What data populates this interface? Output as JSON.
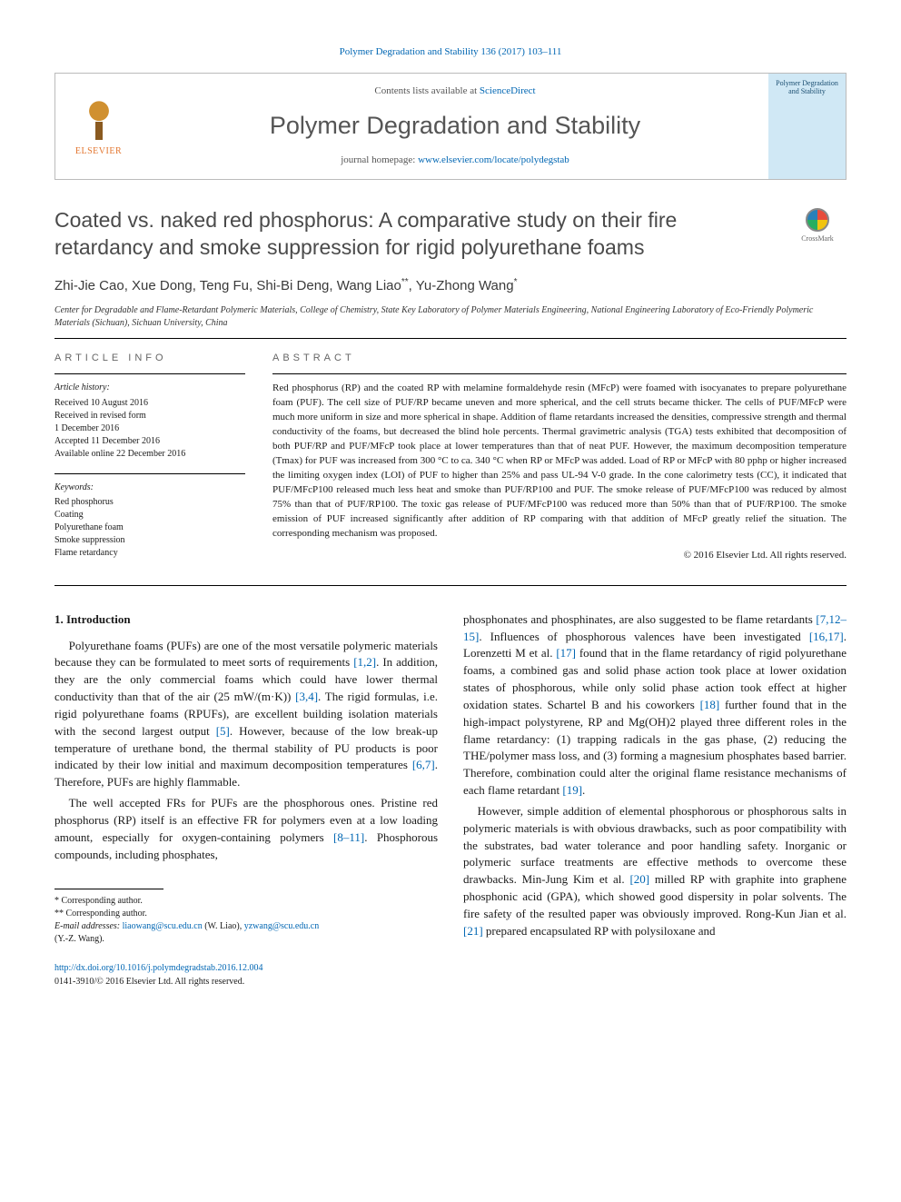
{
  "top_citation": "Polymer Degradation and Stability 136 (2017) 103–111",
  "header": {
    "publisher": "ELSEVIER",
    "contents_prefix": "Contents lists available at ",
    "contents_link": "ScienceDirect",
    "journal_name": "Polymer Degradation and Stability",
    "homepage_prefix": "journal homepage: ",
    "homepage_link": "www.elsevier.com/locate/polydegstab",
    "cover_title": "Polymer Degradation and Stability"
  },
  "crossmark_label": "CrossMark",
  "article": {
    "title": "Coated vs. naked red phosphorus: A comparative study on their fire retardancy and smoke suppression for rigid polyurethane foams",
    "authors": "Zhi-Jie Cao, Xue Dong, Teng Fu, Shi-Bi Deng, Wang Liao",
    "author_marks_1": "**",
    "author_last": ", Yu-Zhong Wang",
    "author_marks_2": "*",
    "affiliation": "Center for Degradable and Flame-Retardant Polymeric Materials, College of Chemistry, State Key Laboratory of Polymer Materials Engineering, National Engineering Laboratory of Eco-Friendly Polymeric Materials (Sichuan), Sichuan University, China"
  },
  "info_heading": "ARTICLE INFO",
  "abs_heading": "ABSTRACT",
  "history": {
    "label": "Article history:",
    "received": "Received 10 August 2016",
    "revised": "Received in revised form",
    "revised_date": "1 December 2016",
    "accepted": "Accepted 11 December 2016",
    "online": "Available online 22 December 2016"
  },
  "keywords": {
    "label": "Keywords:",
    "items": [
      "Red phosphorus",
      "Coating",
      "Polyurethane foam",
      "Smoke suppression",
      "Flame retardancy"
    ]
  },
  "abstract": "Red phosphorus (RP) and the coated RP with melamine formaldehyde resin (MFcP) were foamed with isocyanates to prepare polyurethane foam (PUF). The cell size of PUF/RP became uneven and more spherical, and the cell struts became thicker. The cells of PUF/MFcP were much more uniform in size and more spherical in shape. Addition of flame retardants increased the densities, compressive strength and thermal conductivity of the foams, but decreased the blind hole percents. Thermal gravimetric analysis (TGA) tests exhibited that decomposition of both PUF/RP and PUF/MFcP took place at lower temperatures than that of neat PUF. However, the maximum decomposition temperature (Tmax) for PUF was increased from 300 °C to ca. 340 °C when RP or MFcP was added. Load of RP or MFcP with 80 pphp or higher increased the limiting oxygen index (LOI) of PUF to higher than 25% and pass UL-94 V-0 grade. In the cone calorimetry tests (CC), it indicated that PUF/MFcP100 released much less heat and smoke than PUF/RP100 and PUF. The smoke release of PUF/MFcP100 was reduced by almost 75% than that of PUF/RP100. The toxic gas release of PUF/MFcP100 was reduced more than 50% than that of PUF/RP100. The smoke emission of PUF increased significantly after addition of RP comparing with that addition of MFcP greatly relief the situation. The corresponding mechanism was proposed.",
  "copyright": "© 2016 Elsevier Ltd. All rights reserved.",
  "section_1": "1. Introduction",
  "col_left": {
    "p1a": "Polyurethane foams (PUFs) are one of the most versatile polymeric materials because they can be formulated to meet sorts of requirements ",
    "r1": "[1,2]",
    "p1b": ". In addition, they are the only commercial foams which could have lower thermal conductivity than that of the air (25 mW/(m·K)) ",
    "r2": "[3,4]",
    "p1c": ". The rigid formulas, i.e. rigid polyurethane foams (RPUFs), are excellent building isolation materials with the second largest output ",
    "r3": "[5]",
    "p1d": ". However, because of the low break-up temperature of urethane bond, the thermal stability of PU products is poor indicated by their low initial and maximum decomposition temperatures ",
    "r4": "[6,7]",
    "p1e": ". Therefore, PUFs are highly flammable.",
    "p2a": "The well accepted FRs for PUFs are the phosphorous ones. Pristine red phosphorus (RP) itself is an effective FR for polymers even at a low loading amount, especially for oxygen-containing polymers ",
    "r5": "[8–11]",
    "p2b": ". Phosphorous compounds, including phosphates,"
  },
  "col_right": {
    "p1a": "phosphonates and phosphinates, are also suggested to be flame retardants ",
    "r1": "[7,12–15]",
    "p1b": ". Influences of phosphorous valences have been investigated ",
    "r2": "[16,17]",
    "p1c": ". Lorenzetti M et al. ",
    "r3": "[17]",
    "p1d": " found that in the flame retardancy of rigid polyurethane foams, a combined gas and solid phase action took place at lower oxidation states of phosphorous, while only solid phase action took effect at higher oxidation states. Schartel B and his coworkers ",
    "r4": "[18]",
    "p1e": " further found that in the high-impact polystyrene, RP and Mg(OH)2 played three different roles in the flame retardancy: (1) trapping radicals in the gas phase, (2) reducing the THE/polymer mass loss, and (3) forming a magnesium phosphates based barrier. Therefore, combination could alter the original flame resistance mechanisms of each flame retardant ",
    "r5": "[19]",
    "p1f": ".",
    "p2a": "However, simple addition of elemental phosphorous or phosphorous salts in polymeric materials is with obvious drawbacks, such as poor compatibility with the substrates, bad water tolerance and poor handling safety. Inorganic or polymeric surface treatments are effective methods to overcome these drawbacks. Min-Jung Kim et al. ",
    "r6": "[20]",
    "p2b": " milled RP with graphite into graphene phosphonic acid (GPA), which showed good dispersity in polar solvents. The fire safety of the resulted paper was obviously improved. Rong-Kun Jian et al. ",
    "r7": "[21]",
    "p2c": " prepared encapsulated RP with polysiloxane and"
  },
  "footnotes": {
    "f1": "* Corresponding author.",
    "f2": "** Corresponding author.",
    "email_label": "E-mail addresses:",
    "email1": "liaowang@scu.edu.cn",
    "email1_name": " (W. Liao), ",
    "email2": "yzwang@scu.edu.cn",
    "email2_name": "(Y.-Z. Wang)."
  },
  "bottom": {
    "doi": "http://dx.doi.org/10.1016/j.polymdegradstab.2016.12.004",
    "issn_line": "0141-3910/© 2016 Elsevier Ltd. All rights reserved."
  },
  "colors": {
    "link": "#0066b3",
    "text": "#1a1a1a",
    "heading_gray": "#4a4a4a",
    "publisher_orange": "#e3762f"
  }
}
